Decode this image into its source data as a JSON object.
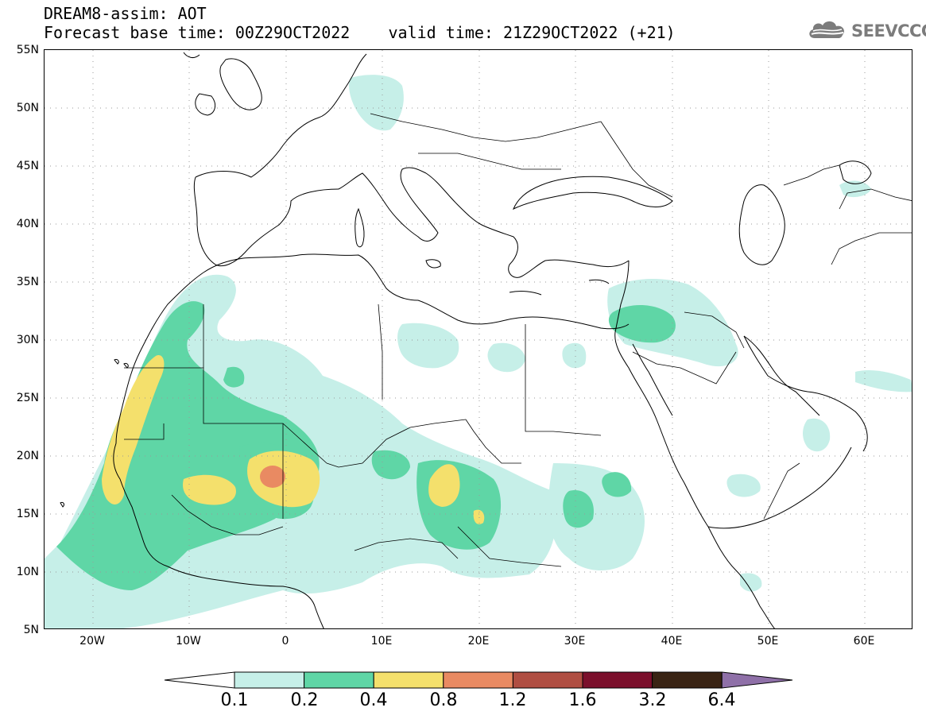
{
  "header": {
    "title": "DREAM8-assim: AOT",
    "base_time": "Forecast base time: 00Z29OCT2022",
    "valid_time": "valid time: 21Z29OCT2022 (+21)"
  },
  "logo": {
    "text": "SEEVCCC",
    "icon": "cloud-icon"
  },
  "map": {
    "lat_labels": [
      "55N",
      "50N",
      "45N",
      "40N",
      "35N",
      "30N",
      "25N",
      "20N",
      "15N",
      "10N",
      "5N"
    ],
    "lon_labels": [
      "20W",
      "10W",
      "0",
      "10E",
      "20E",
      "30E",
      "40E",
      "50E",
      "60E"
    ],
    "lon_range": [
      -25,
      65
    ],
    "lat_range": [
      5,
      55
    ]
  },
  "colorbar": {
    "labels": [
      "0.1",
      "0.2",
      "0.4",
      "0.8",
      "1.2",
      "1.6",
      "3.2",
      "6.4"
    ],
    "colors": [
      "#c6efe8",
      "#5fd6a6",
      "#f4e06c",
      "#e98a62",
      "#b04e42",
      "#7b0f2b",
      "#3a2414",
      "#8f70a8"
    ],
    "low_end_color": "#ffffff"
  },
  "colors": {
    "class_1": "#c6efe8",
    "class_2": "#5fd6a6",
    "class_3": "#f4e06c",
    "class_4": "#e98a62"
  }
}
